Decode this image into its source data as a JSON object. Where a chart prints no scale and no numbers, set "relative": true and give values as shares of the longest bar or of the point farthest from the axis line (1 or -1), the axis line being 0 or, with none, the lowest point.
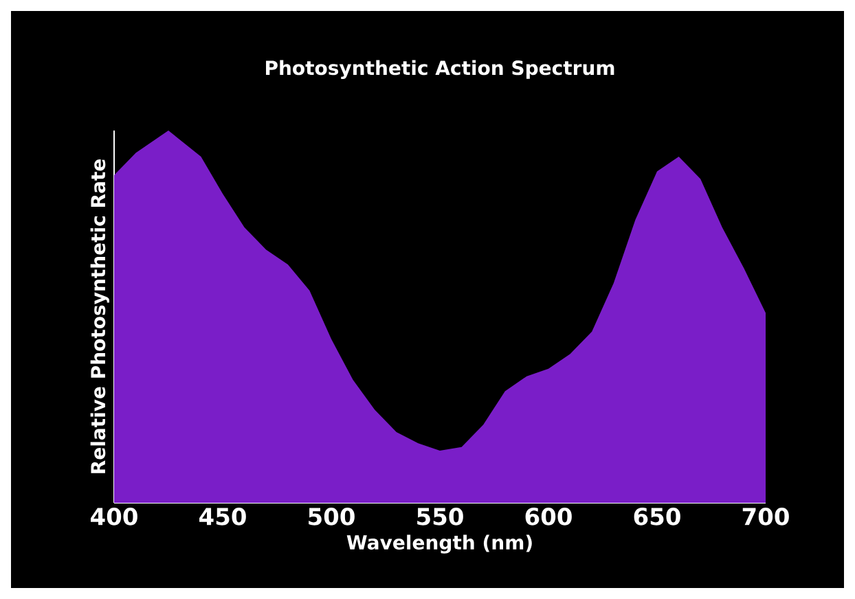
{
  "chart_data": {
    "type": "area",
    "title": "Photosynthetic Action Spectrum",
    "xlabel": "Wavelength (nm)",
    "ylabel": "Relative Photosynthetic Rate",
    "relative": true,
    "x": [
      400,
      410,
      425,
      440,
      450,
      460,
      470,
      480,
      490,
      500,
      510,
      520,
      530,
      540,
      550,
      560,
      570,
      580,
      590,
      600,
      610,
      620,
      630,
      640,
      650,
      660,
      670,
      680,
      690,
      700
    ],
    "series": [
      {
        "values": [
          0.88,
          0.94,
          1.0,
          0.93,
          0.83,
          0.74,
          0.68,
          0.64,
          0.57,
          0.44,
          0.33,
          0.25,
          0.19,
          0.16,
          0.14,
          0.15,
          0.21,
          0.3,
          0.34,
          0.36,
          0.4,
          0.46,
          0.59,
          0.76,
          0.89,
          0.93,
          0.87,
          0.74,
          0.63,
          0.51
        ],
        "color": "#7a1ec8"
      }
    ],
    "xlim": [
      400,
      700
    ],
    "xticks": [
      400,
      450,
      500,
      550,
      600,
      650,
      700
    ]
  }
}
